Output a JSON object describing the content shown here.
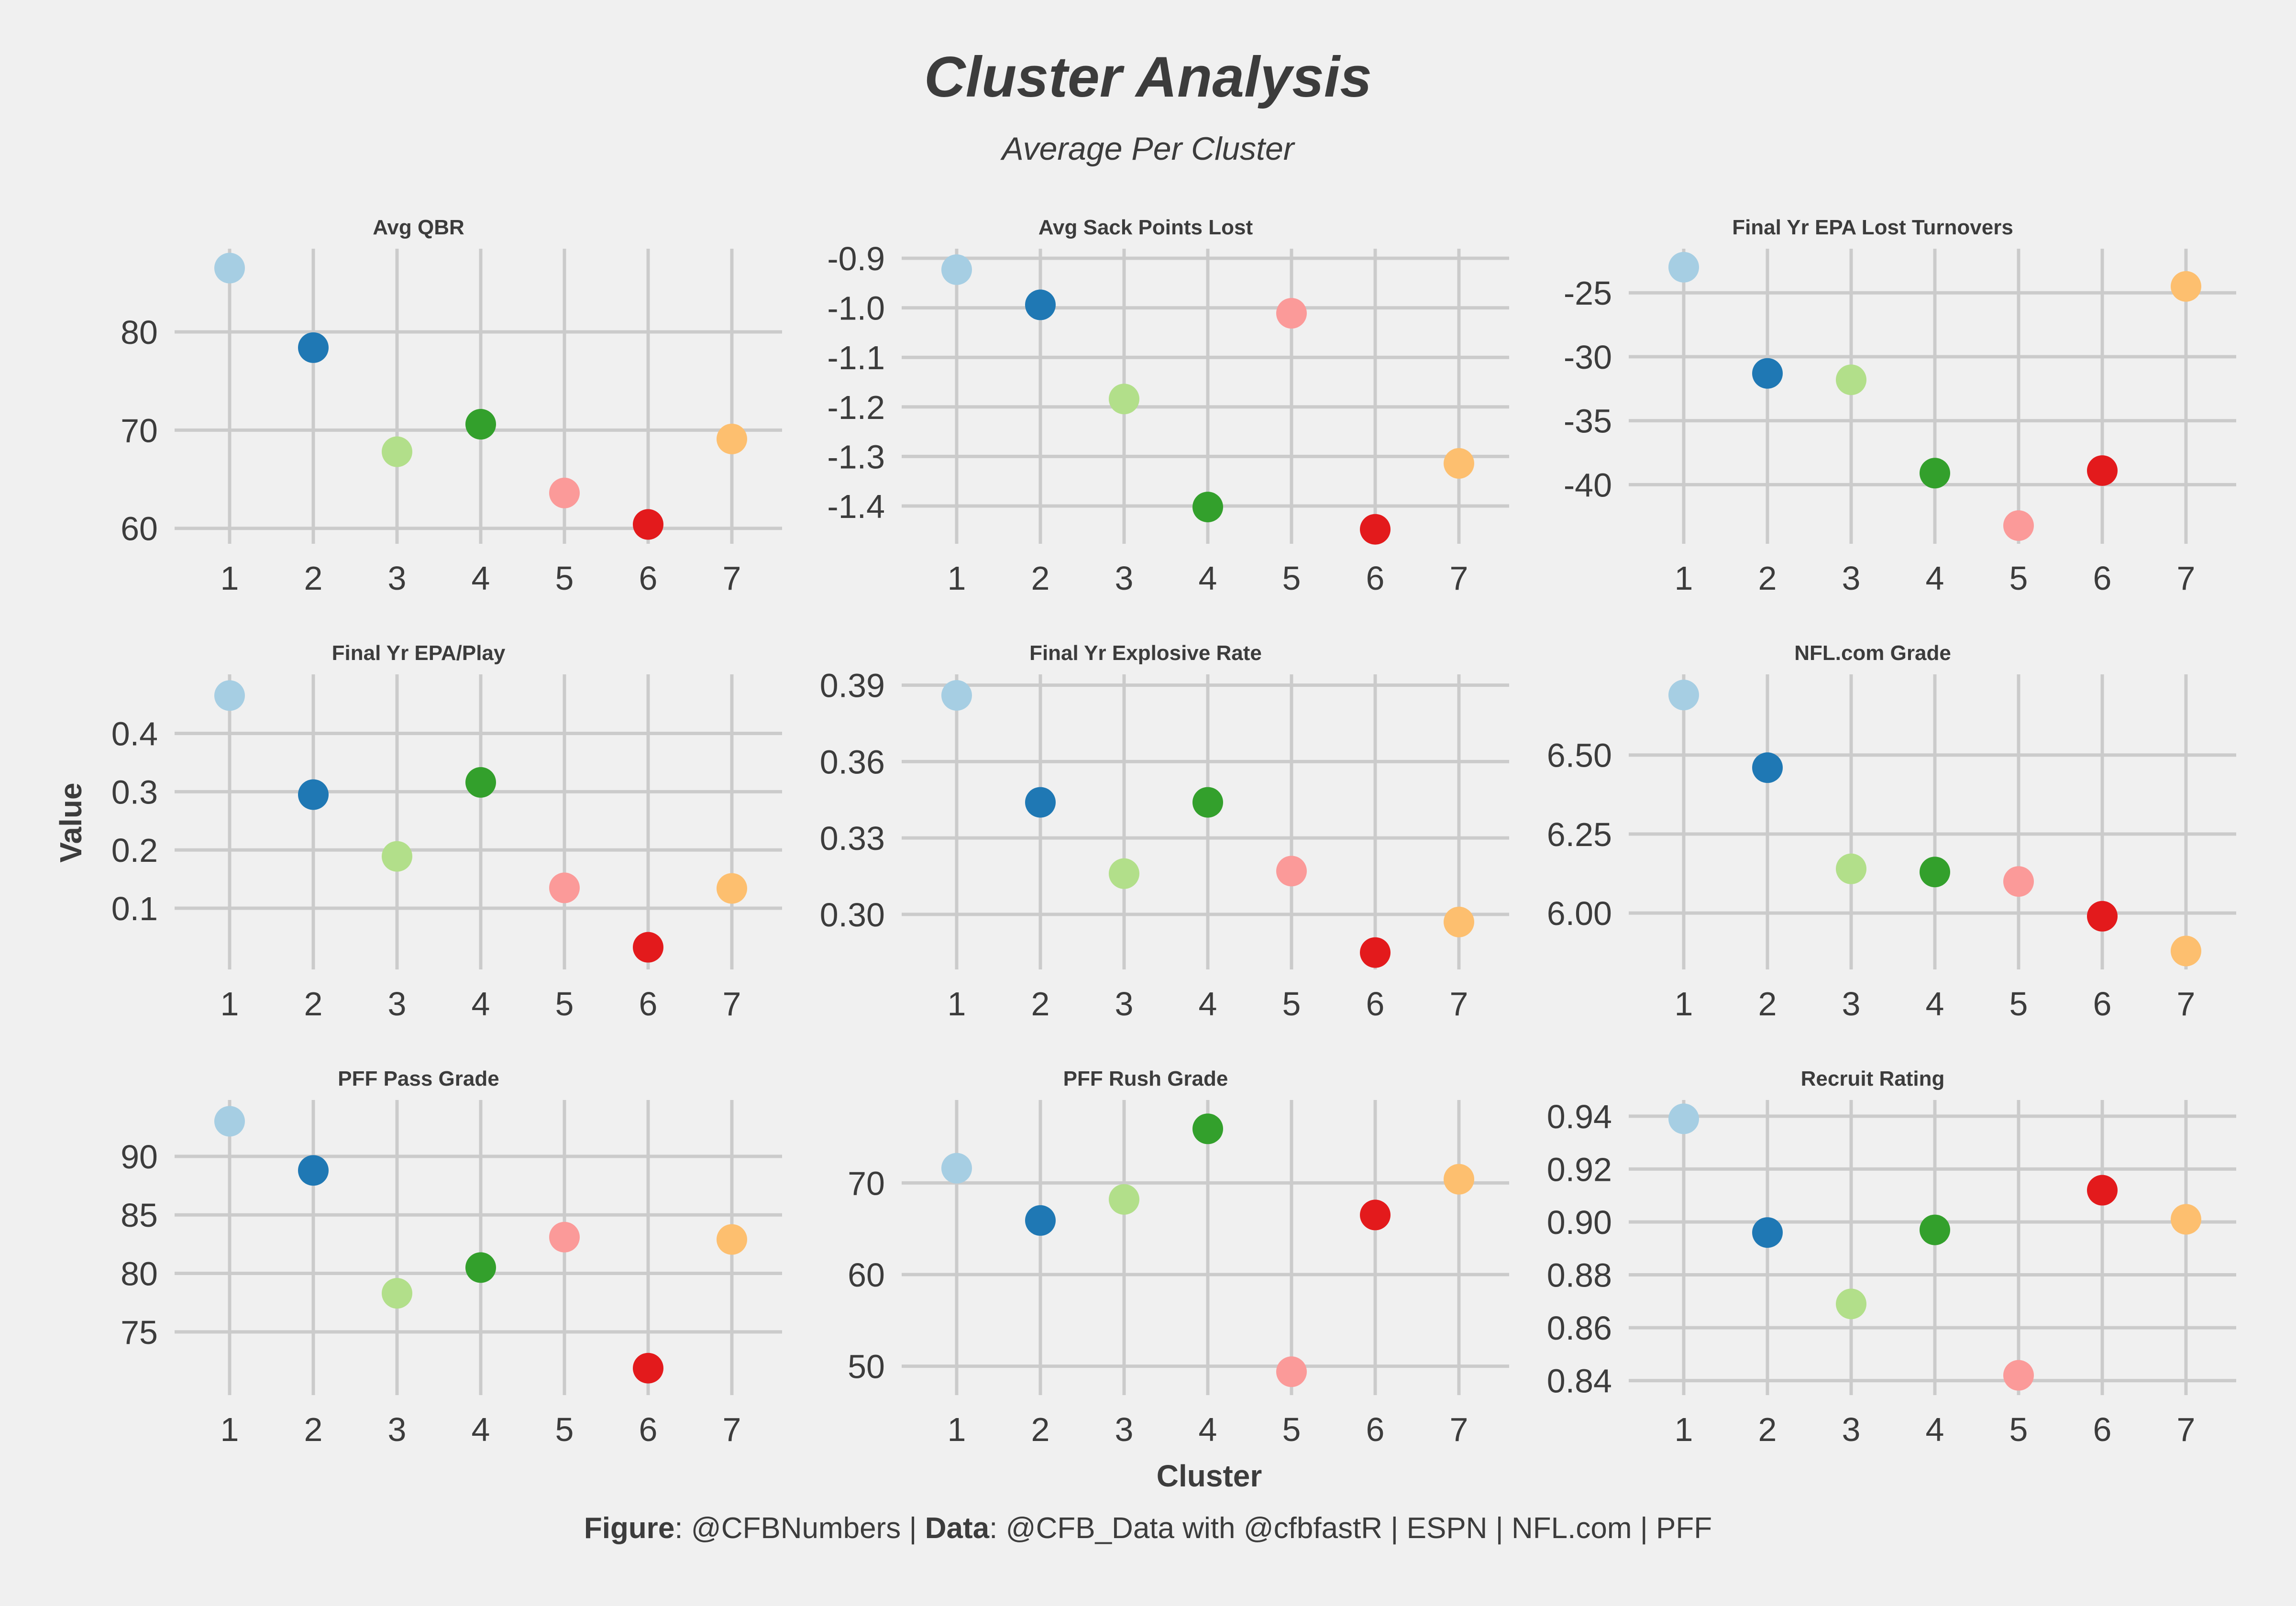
{
  "title": "Cluster Analysis",
  "subtitle": "Average Per Cluster",
  "footer": {
    "figure_label": "Figure",
    "figure_value": "@CFBNumbers",
    "separator": "|",
    "data_label": "Data",
    "data_value": "@CFB_Data with @cfbfastR | ESPN | NFL.com | PFF"
  },
  "chart_data": {
    "type": "scatter",
    "xlabel": "Cluster",
    "ylabel": "Value",
    "grid": true,
    "categories": [
      1,
      2,
      3,
      4,
      5,
      6,
      7
    ],
    "cluster_colors": [
      "#a6cee3",
      "#1f78b4",
      "#b2df8a",
      "#33a02c",
      "#fb9a99",
      "#e31a1c",
      "#fdbf6f"
    ],
    "panels": [
      {
        "title": "Avg QBR",
        "ylim": [
          59.5,
          87.5
        ],
        "yticks": [
          60,
          70,
          80
        ],
        "ytick_labels": [
          "60",
          "70",
          "80"
        ],
        "values": [
          86.5,
          78.4,
          67.8,
          70.6,
          63.6,
          60.4,
          69.1
        ]
      },
      {
        "title": "Avg Sack Points Lost",
        "ylim": [
          -1.455,
          -0.9
        ],
        "yticks": [
          -1.4,
          -1.3,
          -1.2,
          -1.1,
          -1.0,
          -0.9
        ],
        "ytick_labels": [
          "-1.4",
          "-1.3",
          "-1.2",
          "-1.1",
          "-1.0",
          "-0.9"
        ],
        "values": [
          -0.923,
          -0.994,
          -1.184,
          -1.402,
          -1.011,
          -1.447,
          -1.314
        ]
      },
      {
        "title": "Final Yr EPA Lost Turnovers",
        "ylim": [
          -43.8,
          -22.3
        ],
        "yticks": [
          -40,
          -35,
          -30,
          -25
        ],
        "ytick_labels": [
          "-40",
          "-35",
          "-30",
          "-25"
        ],
        "values": [
          -23.0,
          -31.3,
          -31.8,
          -39.1,
          -43.2,
          -38.9,
          -24.5
        ]
      },
      {
        "title": "Final Yr EPA/Play",
        "ylim": [
          0.013,
          0.485
        ],
        "yticks": [
          0.1,
          0.2,
          0.3,
          0.4
        ],
        "ytick_labels": [
          "0.1",
          "0.2",
          "0.3",
          "0.4"
        ],
        "values": [
          0.465,
          0.295,
          0.189,
          0.316,
          0.135,
          0.033,
          0.134
        ]
      },
      {
        "title": "Final Yr Explosive Rate",
        "ylim": [
          0.2825,
          0.3905
        ],
        "yticks": [
          0.3,
          0.33,
          0.36,
          0.39
        ],
        "ytick_labels": [
          "0.30",
          "0.33",
          "0.36",
          "0.39"
        ],
        "values": [
          0.386,
          0.344,
          0.316,
          0.344,
          0.317,
          0.285,
          0.297
        ]
      },
      {
        "title": "NFL.com Grade",
        "ylim": [
          5.855,
          6.725
        ],
        "yticks": [
          6.0,
          6.25,
          6.5
        ],
        "ytick_labels": [
          "6.00",
          "6.25",
          "6.50"
        ],
        "values": [
          6.69,
          6.46,
          6.14,
          6.13,
          6.1,
          5.99,
          5.88
        ]
      },
      {
        "title": "PFF Pass Grade",
        "ylim": [
          70.5,
          94.0
        ],
        "yticks": [
          75,
          80,
          85,
          90
        ],
        "ytick_labels": [
          "75",
          "80",
          "85",
          "90"
        ],
        "values": [
          93.0,
          88.8,
          78.3,
          80.5,
          83.1,
          71.9,
          82.9
        ]
      },
      {
        "title": "PFF Rush Grade",
        "ylim": [
          48.0,
          78.0
        ],
        "yticks": [
          50,
          60,
          70
        ],
        "ytick_labels": [
          "50",
          "60",
          "70"
        ],
        "values": [
          71.6,
          65.9,
          68.2,
          75.9,
          49.4,
          66.5,
          70.4
        ]
      },
      {
        "title": "Recruit Rating",
        "ylim": [
          0.8385,
          0.9425
        ],
        "yticks": [
          0.84,
          0.86,
          0.88,
          0.9,
          0.92,
          0.94
        ],
        "ytick_labels": [
          "0.84",
          "0.86",
          "0.88",
          "0.90",
          "0.92",
          "0.94"
        ],
        "values": [
          0.939,
          0.896,
          0.869,
          0.897,
          0.842,
          0.912,
          0.901
        ]
      }
    ]
  }
}
